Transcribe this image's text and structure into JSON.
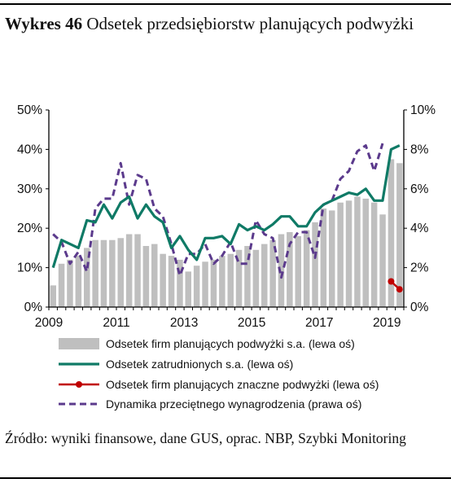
{
  "header": {
    "label": "Wykres 46",
    "text": "Odsetek przedsiębiorstw planujących podwyżki"
  },
  "source": "Źródło: wyniki finansowe, dane GUS, oprac. NBP, Szybki Monitoring",
  "colors": {
    "bars": "#bfbfbf",
    "employment": "#0f7a66",
    "significant": "#c00000",
    "wages": "#5b3a8c"
  },
  "chart_data": {
    "type": "bar",
    "x_range": [
      "2009Q1",
      "2019Q2"
    ],
    "x_tick_labels": [
      "2009",
      "2011",
      "2013",
      "2015",
      "2017",
      "2019"
    ],
    "left_axis": {
      "range": [
        0,
        50
      ],
      "ticks": [
        "0%",
        "10%",
        "20%",
        "30%",
        "40%",
        "50%"
      ]
    },
    "right_axis": {
      "range": [
        0,
        10
      ],
      "ticks": [
        "0%",
        "2%",
        "4%",
        "6%",
        "8%",
        "10%"
      ]
    },
    "quarters": [
      "2009Q1",
      "2009Q2",
      "2009Q3",
      "2009Q4",
      "2010Q1",
      "2010Q2",
      "2010Q3",
      "2010Q4",
      "2011Q1",
      "2011Q2",
      "2011Q3",
      "2011Q4",
      "2012Q1",
      "2012Q2",
      "2012Q3",
      "2012Q4",
      "2013Q1",
      "2013Q2",
      "2013Q3",
      "2013Q4",
      "2014Q1",
      "2014Q2",
      "2014Q3",
      "2014Q4",
      "2015Q1",
      "2015Q2",
      "2015Q3",
      "2015Q4",
      "2016Q1",
      "2016Q2",
      "2016Q3",
      "2016Q4",
      "2017Q1",
      "2017Q2",
      "2017Q3",
      "2017Q4",
      "2018Q1",
      "2018Q2",
      "2018Q3",
      "2018Q4",
      "2019Q1",
      "2019Q2"
    ],
    "series": [
      {
        "name": "Odsetek firm planujących podwyżki s.a. (lewa oś)",
        "axis": "left",
        "kind": "bar",
        "values": [
          5.5,
          11,
          12,
          13,
          15,
          17,
          17,
          17,
          17.5,
          18.5,
          18.5,
          15.5,
          16,
          13.5,
          13,
          12,
          9,
          10.5,
          11.5,
          12,
          13,
          13.5,
          14.5,
          15.5,
          14.5,
          16,
          17,
          18.5,
          19,
          18,
          19.5,
          21.5,
          25,
          24.5,
          26.5,
          27,
          28,
          27.5,
          26.5,
          23.5,
          37.5,
          36.5
        ]
      },
      {
        "name": "Odsetek zatrudnionych s.a. (lewa oś)",
        "axis": "left",
        "kind": "line",
        "values": [
          10,
          17,
          16,
          15,
          22,
          21.5,
          26,
          22.5,
          26.5,
          28,
          22.5,
          26,
          23,
          21.5,
          15,
          18,
          14.5,
          12,
          17.5,
          17.5,
          18,
          16,
          21,
          19.5,
          20.5,
          19.5,
          21,
          23,
          23,
          20.5,
          20.5,
          24,
          26,
          27,
          28,
          29,
          28.5,
          30,
          27,
          27,
          40,
          41
        ]
      },
      {
        "name": "Odsetek firm planujących znaczne podwyżki (lewa oś)",
        "axis": "left",
        "kind": "line",
        "values": [
          null,
          null,
          null,
          null,
          null,
          null,
          null,
          null,
          null,
          null,
          null,
          null,
          null,
          null,
          null,
          null,
          null,
          null,
          null,
          null,
          null,
          null,
          null,
          null,
          null,
          null,
          null,
          null,
          null,
          null,
          null,
          null,
          null,
          null,
          null,
          null,
          null,
          null,
          null,
          null,
          6.5,
          4.5
        ]
      },
      {
        "name": "Dynamika przeciętnego wynagrodzenia (prawa oś)",
        "axis": "right",
        "kind": "line",
        "dashed": true,
        "values": [
          3.7,
          3.3,
          2.2,
          2.8,
          1.8,
          5.0,
          5.5,
          5.5,
          7.3,
          5.2,
          6.7,
          6.5,
          5.0,
          4.6,
          3.2,
          1.6,
          2.7,
          2.7,
          3.2,
          2.2,
          2.6,
          3.3,
          2.2,
          2.2,
          4.4,
          3.7,
          3.5,
          1.5,
          3.2,
          3.8,
          3.8,
          2.5,
          5.2,
          5.4,
          6.5,
          6.9,
          7.9,
          8.2,
          6.9,
          8.3,
          null,
          null
        ]
      }
    ]
  }
}
